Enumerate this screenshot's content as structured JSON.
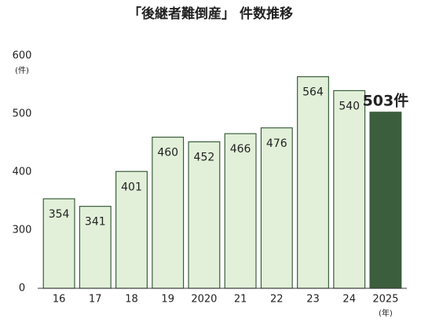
{
  "chart_data": {
    "type": "bar",
    "title": "「後継者難倒産」 件数推移",
    "y_unit": "(件)",
    "x_unit": "(年)",
    "categories": [
      "16",
      "17",
      "18",
      "19",
      "2020",
      "21",
      "22",
      "23",
      "24",
      "2025"
    ],
    "values": [
      354,
      341,
      401,
      460,
      452,
      466,
      476,
      564,
      540,
      503
    ],
    "value_labels": [
      "354",
      "341",
      "401",
      "460",
      "452",
      "466",
      "476",
      "564",
      "540",
      "503件"
    ],
    "colors": [
      "#e2f0d9",
      "#e2f0d9",
      "#e2f0d9",
      "#e2f0d9",
      "#e2f0d9",
      "#e2f0d9",
      "#e2f0d9",
      "#e2f0d9",
      "#e2f0d9",
      "#3b5e3c"
    ],
    "edge_color": "#3b5e3c",
    "ylim": [
      0,
      600
    ],
    "yticks": [
      0,
      300,
      400,
      500,
      600
    ],
    "scale": "tick-spaced",
    "grid": false
  }
}
